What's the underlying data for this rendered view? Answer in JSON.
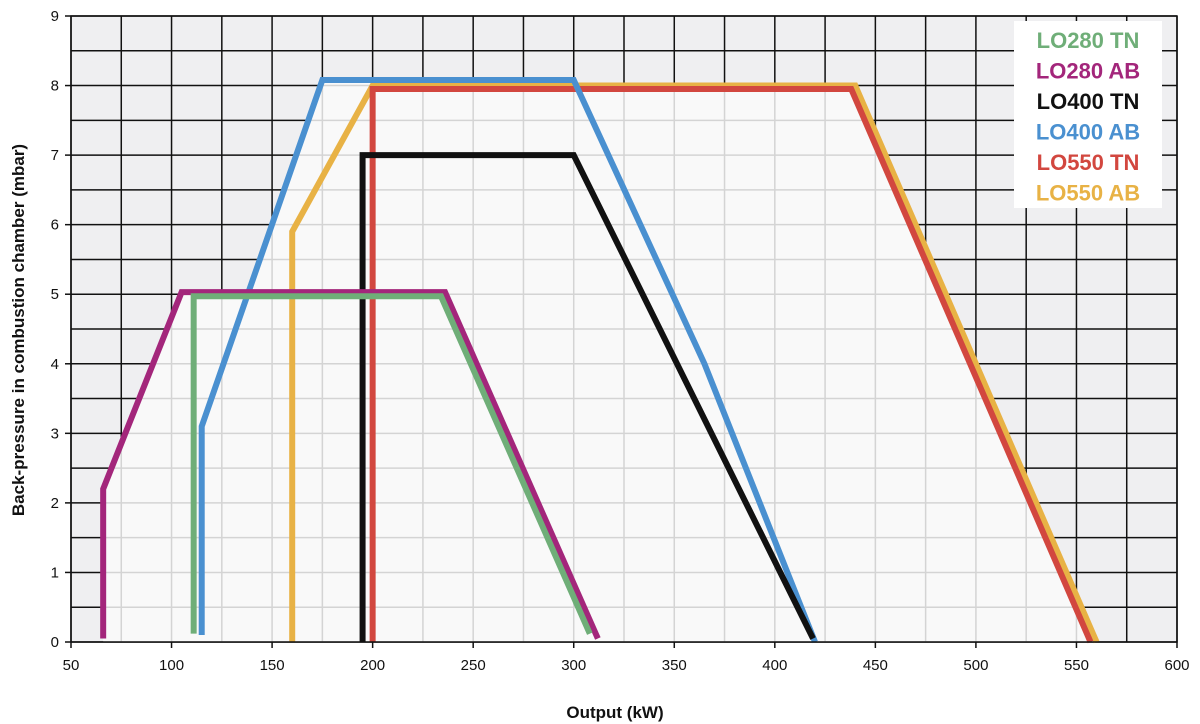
{
  "chart_data": {
    "type": "area",
    "title": "",
    "xlabel": "Output (kW)",
    "ylabel": "Back-pressure in combustion chamber (mbar)",
    "xlim": [
      50,
      600
    ],
    "ylim": [
      0,
      9
    ],
    "x_ticks": [
      50,
      100,
      150,
      200,
      250,
      300,
      350,
      400,
      450,
      500,
      550,
      600
    ],
    "y_ticks": [
      0,
      1,
      2,
      3,
      4,
      5,
      6,
      7,
      8,
      9
    ],
    "grid": true,
    "legend_position": "top-right",
    "colors": {
      "background_major": "#efeff1",
      "background_region": "#f9f9f9",
      "grid_major": "#111111",
      "grid_minor": "#d4d4d4"
    },
    "series": [
      {
        "name": "LO550 AB",
        "color": "#e8b245",
        "points": [
          [
            160,
            0
          ],
          [
            160,
            5.9
          ],
          [
            200,
            8
          ],
          [
            440,
            8
          ],
          [
            560,
            0
          ]
        ]
      },
      {
        "name": "LO550 TN",
        "color": "#d2473f",
        "points": [
          [
            200,
            0
          ],
          [
            200,
            7.95
          ],
          [
            438,
            7.95
          ],
          [
            557,
            0
          ]
        ]
      },
      {
        "name": "LO400 AB",
        "color": "#4a90d0",
        "points": [
          [
            115,
            0.1
          ],
          [
            115,
            3.1
          ],
          [
            175,
            8.08
          ],
          [
            300,
            8.08
          ],
          [
            365,
            4
          ],
          [
            420,
            0
          ]
        ]
      },
      {
        "name": "LO400 TN",
        "color": "#111111",
        "points": [
          [
            195,
            0
          ],
          [
            195,
            7
          ],
          [
            300,
            7
          ],
          [
            419,
            0.05
          ]
        ]
      },
      {
        "name": "LO280 AB",
        "color": "#a3267b",
        "points": [
          [
            66,
            0.05
          ],
          [
            66,
            2.2
          ],
          [
            105,
            5.03
          ],
          [
            236,
            5.03
          ],
          [
            312,
            0.05
          ]
        ]
      },
      {
        "name": "LO280 TN",
        "color": "#6fae78",
        "points": [
          [
            111,
            0.12
          ],
          [
            111,
            4.97
          ],
          [
            234,
            4.97
          ],
          [
            308,
            0.12
          ]
        ]
      }
    ],
    "legend": [
      {
        "label": "LO280 TN",
        "color": "#6fae78"
      },
      {
        "label": "LO280 AB",
        "color": "#a3267b"
      },
      {
        "label": "LO400 TN",
        "color": "#111111"
      },
      {
        "label": "LO400 AB",
        "color": "#4a90d0"
      },
      {
        "label": "LO550 TN",
        "color": "#d2473f"
      },
      {
        "label": "LO550 AB",
        "color": "#e8b245"
      }
    ]
  }
}
